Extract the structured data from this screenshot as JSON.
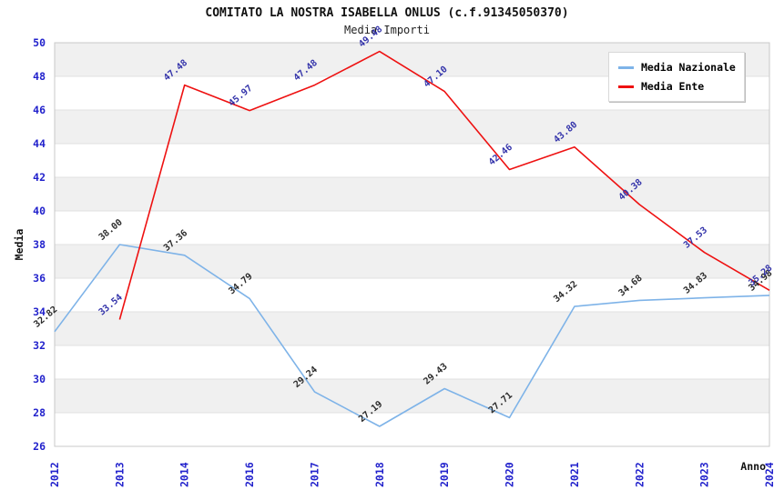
{
  "chart_data": {
    "type": "line",
    "title": "COMITATO LA NOSTRA ISABELLA ONLUS (c.f.91345050370)",
    "subtitle": "Media Importi",
    "xlabel": "Anno",
    "ylabel": "Media",
    "ylim": [
      26,
      50
    ],
    "ytick_step": 2,
    "yticks": [
      26,
      28,
      30,
      32,
      34,
      36,
      38,
      40,
      42,
      44,
      46,
      48,
      50
    ],
    "categories": [
      "2012",
      "2013",
      "2014",
      "2016",
      "2017",
      "2018",
      "2019",
      "2020",
      "2021",
      "2022",
      "2023",
      "2024"
    ],
    "grid": "horizontal-bands-alternating",
    "legend_position": "top-right",
    "series": [
      {
        "name": "Media Nazionale",
        "color": "#7eb3e8",
        "label_color": "#2b2b2b",
        "values": [
          32.82,
          38.0,
          37.36,
          34.79,
          29.24,
          27.19,
          29.43,
          27.71,
          34.32,
          34.68,
          34.83,
          34.98
        ],
        "labels": [
          "32.82",
          "38.00",
          "37.36",
          "34.79",
          "29.24",
          "27.19",
          "29.43",
          "27.71",
          "34.32",
          "34.68",
          "34.83",
          "34.98"
        ]
      },
      {
        "name": "Media Ente",
        "color": "#ee1111",
        "label_color": "#3333aa",
        "values": [
          null,
          33.54,
          47.48,
          45.97,
          47.48,
          49.48,
          47.1,
          42.46,
          43.8,
          40.38,
          37.53,
          35.28
        ],
        "labels": [
          null,
          "33.54",
          "47.48",
          "45.97",
          "47.48",
          "49.48",
          "47.10",
          "42.46",
          "43.80",
          "40.38",
          "37.53",
          "35.28"
        ]
      }
    ]
  },
  "legend": {
    "items": [
      {
        "label": "Media Nazionale",
        "color": "#7eb3e8"
      },
      {
        "label": "Media Ente",
        "color": "#ee1111"
      }
    ]
  },
  "colors": {
    "axis_tick_text": "#2222cc",
    "band_gray": "#f0f0f0",
    "band_white": "#ffffff",
    "gridline": "#e0e0e0",
    "plot_border": "#c9c9c9",
    "axis_label_text": "#111111",
    "title_text": "#111111"
  }
}
